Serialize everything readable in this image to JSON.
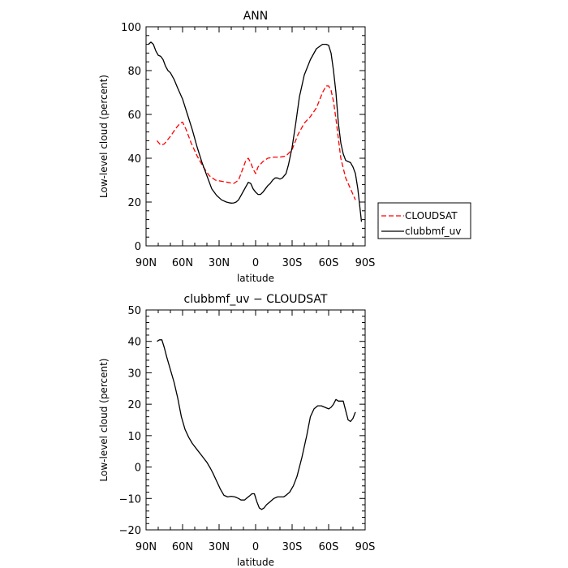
{
  "chart_data": [
    {
      "type": "line",
      "title": "ANN",
      "xlabel": "latitude",
      "ylabel": "Low-level cloud (percent)",
      "x_ticks": [
        {
          "value": -90,
          "label": "90N"
        },
        {
          "value": -60,
          "label": "60N"
        },
        {
          "value": -30,
          "label": "30N"
        },
        {
          "value": 0,
          "label": "0"
        },
        {
          "value": 30,
          "label": "30S"
        },
        {
          "value": 60,
          "label": "60S"
        },
        {
          "value": 90,
          "label": "90S"
        }
      ],
      "y_ticks": [
        0,
        20,
        40,
        60,
        80,
        100
      ],
      "xlim": [
        -90,
        90
      ],
      "ylim": [
        0,
        100
      ],
      "grid": false,
      "legend_position": "right",
      "series": [
        {
          "name": "CLOUDSAT",
          "color": "#ff0000",
          "dash": "dashed",
          "x": [
            -81,
            -78,
            -75,
            -70,
            -65,
            -62,
            -60,
            -57,
            -53,
            -48,
            -43,
            -38,
            -33,
            -28,
            -23,
            -18,
            -14,
            -12,
            -10,
            -8,
            -6,
            -4,
            -2,
            0,
            2,
            6,
            10,
            15,
            20,
            25,
            30,
            35,
            40,
            45,
            50,
            55,
            58,
            60,
            62,
            64,
            66,
            68,
            70,
            74,
            78,
            82
          ],
          "y": [
            48,
            46,
            46.5,
            50,
            54,
            56,
            56.5,
            53,
            47,
            41,
            36,
            32,
            30,
            29.5,
            29,
            28.5,
            30,
            33,
            36,
            39,
            40,
            38,
            35,
            33,
            36,
            38.5,
            40,
            40.5,
            40.5,
            41,
            44,
            51,
            56,
            59,
            63,
            70,
            73,
            73,
            71,
            66,
            58,
            49,
            40,
            31,
            26,
            21
          ]
        },
        {
          "name": "clubbmf_uv",
          "color": "#000000",
          "dash": "solid",
          "x": [
            -88,
            -86,
            -84,
            -82,
            -80,
            -78,
            -76,
            -74,
            -72,
            -70,
            -67,
            -64,
            -60,
            -56,
            -52,
            -48,
            -44,
            -40,
            -36,
            -32,
            -28,
            -24,
            -22,
            -20,
            -18,
            -16,
            -14,
            -12,
            -10,
            -8,
            -6,
            -4,
            -2,
            0,
            2,
            4,
            6,
            8,
            10,
            12,
            14,
            16,
            18,
            20,
            22,
            25,
            27,
            30,
            33,
            36,
            40,
            45,
            50,
            55,
            58,
            60,
            62,
            64,
            66,
            68,
            70,
            72,
            74,
            76,
            78,
            80,
            82,
            84,
            86,
            87
          ],
          "y": [
            92,
            93,
            92,
            89,
            87,
            86.5,
            85,
            82,
            80,
            79,
            76,
            72,
            67,
            60,
            53,
            45,
            38,
            32,
            26,
            23,
            21,
            20,
            19.7,
            19.5,
            19.6,
            20,
            21,
            23,
            25,
            27,
            29,
            28.5,
            26,
            24.5,
            23.5,
            23.5,
            24.5,
            26,
            27.5,
            28.5,
            30,
            31,
            31,
            30.5,
            31,
            33,
            37,
            45,
            56,
            68,
            78,
            85,
            90,
            92,
            92,
            91.5,
            88,
            80,
            70,
            56,
            47,
            42,
            39,
            38.5,
            38,
            36,
            33,
            26,
            16,
            11
          ]
        }
      ]
    },
    {
      "type": "line",
      "title": "clubbmf_uv − CLOUDSAT",
      "xlabel": "latitude",
      "ylabel": "Low-level cloud (percent)",
      "x_ticks": [
        {
          "value": -90,
          "label": "90N"
        },
        {
          "value": -60,
          "label": "60N"
        },
        {
          "value": -30,
          "label": "30N"
        },
        {
          "value": 0,
          "label": "0"
        },
        {
          "value": 30,
          "label": "30S"
        },
        {
          "value": 60,
          "label": "60S"
        },
        {
          "value": 90,
          "label": "90S"
        }
      ],
      "y_ticks": [
        -20,
        -10,
        0,
        10,
        20,
        30,
        40,
        50
      ],
      "xlim": [
        -90,
        90
      ],
      "ylim": [
        -20,
        50
      ],
      "grid": false,
      "series": [
        {
          "color": "#000000",
          "dash": "solid",
          "x": [
            -81,
            -79,
            -77,
            -75,
            -73,
            -70,
            -67,
            -64,
            -61,
            -58,
            -55,
            -52,
            -48,
            -44,
            -40,
            -37,
            -35,
            -32,
            -29,
            -26,
            -23,
            -20,
            -17,
            -14,
            -12,
            -9,
            -7,
            -5,
            -3,
            -1,
            1,
            3,
            5,
            7,
            9,
            12,
            15,
            18,
            20,
            23,
            25,
            28,
            31,
            34,
            38,
            42,
            45,
            48,
            51,
            54,
            57,
            60,
            62,
            64,
            66,
            68,
            70,
            72,
            74,
            76,
            78,
            80,
            82
          ],
          "y": [
            40,
            40.5,
            40.5,
            38,
            35,
            31,
            27,
            22,
            16,
            12,
            9.5,
            7.5,
            5.5,
            3.5,
            1.5,
            -0.5,
            -2,
            -4.5,
            -7,
            -9,
            -9.5,
            -9.3,
            -9.5,
            -10,
            -10.5,
            -10.5,
            -9.8,
            -9.2,
            -8.5,
            -8.5,
            -11,
            -13,
            -13.5,
            -13,
            -12,
            -11,
            -10,
            -9.5,
            -9.5,
            -9.5,
            -9,
            -8,
            -6,
            -3,
            3,
            10,
            16,
            18.5,
            19.5,
            19.5,
            19,
            18.5,
            19,
            20,
            21.5,
            21,
            21,
            21,
            18,
            15,
            14.5,
            15.5,
            17.5
          ]
        }
      ]
    }
  ]
}
